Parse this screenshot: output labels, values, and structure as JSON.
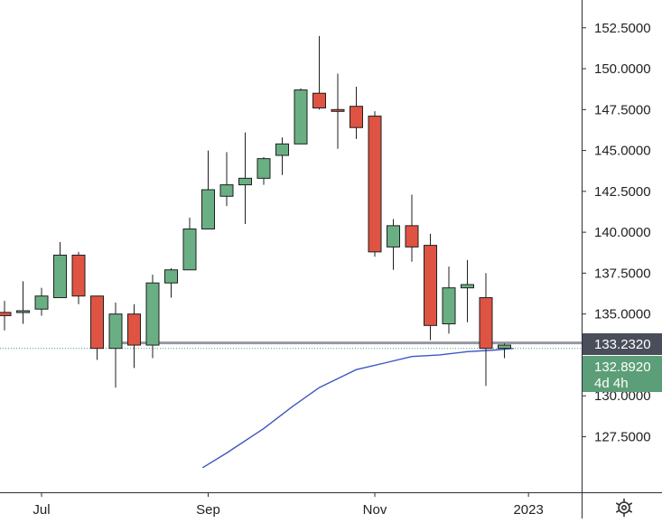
{
  "chart_data": {
    "type": "candlestick",
    "title": "",
    "xlabel": "",
    "ylabel": "",
    "ylim": [
      125.6,
      153.4
    ],
    "y_ticks": [
      "152.5000",
      "150.0000",
      "147.5000",
      "145.0000",
      "142.5000",
      "140.0000",
      "137.5000",
      "135.0000",
      "130.0000",
      "127.5000"
    ],
    "x_ticks": [
      {
        "label": "Jul",
        "index": 2
      },
      {
        "label": "Sep",
        "index": 11
      },
      {
        "label": "Nov",
        "index": 20
      },
      {
        "label": "2023",
        "index": 28.3
      }
    ],
    "grid": false,
    "colors": {
      "up": "#5b9c72",
      "down": "#df5343",
      "up_body": "#6aaf83",
      "wick": "#1f1f1f",
      "ma": "#3d55c4",
      "level_line": "#9598a1",
      "price_line": "#4f9a6c",
      "axis_text": "#222222"
    },
    "candles": [
      {
        "o": 135.1,
        "h": 135.8,
        "l": 134.0,
        "c": 134.9
      },
      {
        "o": 135.2,
        "h": 137.0,
        "l": 134.4,
        "c": 135.2
      },
      {
        "o": 135.3,
        "h": 136.6,
        "l": 134.9,
        "c": 136.1
      },
      {
        "o": 136.0,
        "h": 139.4,
        "l": 136.0,
        "c": 138.6
      },
      {
        "o": 138.6,
        "h": 138.8,
        "l": 135.6,
        "c": 136.1
      },
      {
        "o": 136.1,
        "h": 136.1,
        "l": 132.2,
        "c": 132.9
      },
      {
        "o": 132.9,
        "h": 135.7,
        "l": 130.5,
        "c": 135.0
      },
      {
        "o": 135.0,
        "h": 135.6,
        "l": 131.7,
        "c": 133.1
      },
      {
        "o": 133.1,
        "h": 137.4,
        "l": 132.3,
        "c": 136.9
      },
      {
        "o": 136.9,
        "h": 137.8,
        "l": 136.0,
        "c": 137.7
      },
      {
        "o": 137.7,
        "h": 140.9,
        "l": 137.7,
        "c": 140.2
      },
      {
        "o": 140.2,
        "h": 145.0,
        "l": 140.2,
        "c": 142.6
      },
      {
        "o": 142.2,
        "h": 144.9,
        "l": 141.6,
        "c": 142.9
      },
      {
        "o": 142.9,
        "h": 146.1,
        "l": 140.5,
        "c": 143.3
      },
      {
        "o": 143.3,
        "h": 144.6,
        "l": 142.9,
        "c": 144.5
      },
      {
        "o": 144.7,
        "h": 145.8,
        "l": 143.5,
        "c": 145.4
      },
      {
        "o": 145.4,
        "h": 148.8,
        "l": 145.4,
        "c": 148.7
      },
      {
        "o": 148.5,
        "h": 152.0,
        "l": 147.5,
        "c": 147.6
      },
      {
        "o": 147.5,
        "h": 149.7,
        "l": 145.1,
        "c": 147.4
      },
      {
        "o": 147.7,
        "h": 148.9,
        "l": 145.7,
        "c": 146.4
      },
      {
        "o": 147.1,
        "h": 147.4,
        "l": 138.5,
        "c": 138.8
      },
      {
        "o": 139.1,
        "h": 140.8,
        "l": 137.7,
        "c": 140.4
      },
      {
        "o": 140.4,
        "h": 142.3,
        "l": 138.2,
        "c": 139.1
      },
      {
        "o": 139.2,
        "h": 139.9,
        "l": 133.4,
        "c": 134.3
      },
      {
        "o": 134.4,
        "h": 137.9,
        "l": 133.8,
        "c": 136.6
      },
      {
        "o": 136.6,
        "h": 138.3,
        "l": 134.5,
        "c": 136.8
      },
      {
        "o": 136.0,
        "h": 137.5,
        "l": 130.6,
        "c": 132.9
      },
      {
        "o": 132.9,
        "h": 133.2,
        "l": 132.3,
        "c": 133.1
      }
    ],
    "moving_average": [
      {
        "i": 10.7,
        "v": 125.6
      },
      {
        "i": 12.0,
        "v": 126.5
      },
      {
        "i": 14.0,
        "v": 128.0
      },
      {
        "i": 15.5,
        "v": 129.3
      },
      {
        "i": 17.0,
        "v": 130.5
      },
      {
        "i": 19.0,
        "v": 131.6
      },
      {
        "i": 20.5,
        "v": 132.0
      },
      {
        "i": 22.0,
        "v": 132.4
      },
      {
        "i": 23.5,
        "v": 132.5
      },
      {
        "i": 25.0,
        "v": 132.7
      },
      {
        "i": 26.5,
        "v": 132.8
      },
      {
        "i": 27.5,
        "v": 132.9
      }
    ],
    "horizontal_level": 133.232,
    "price_line": 132.892,
    "labels": {
      "level": "133.2320",
      "price": "132.8920",
      "countdown": "4d 4h"
    }
  }
}
